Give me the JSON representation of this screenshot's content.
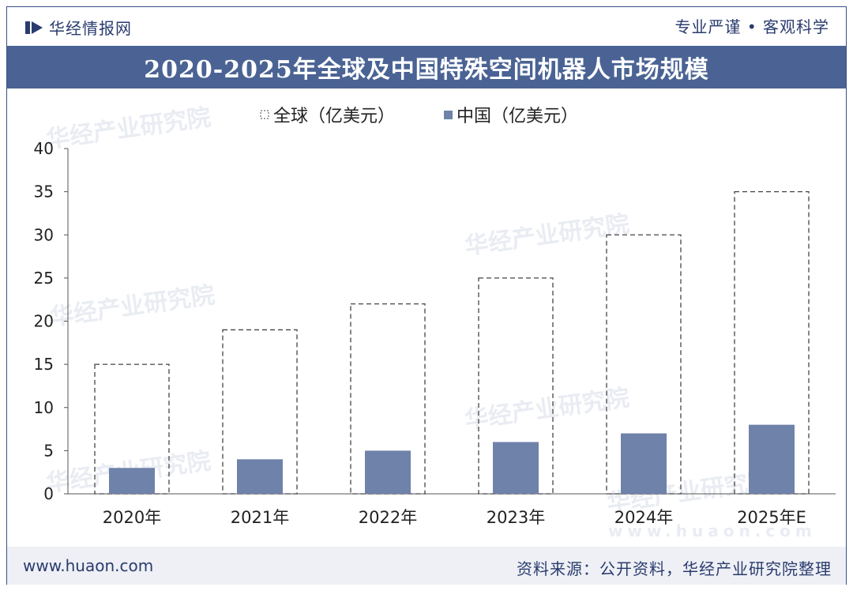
{
  "header": {
    "brand": "华经情报网",
    "slogan": "专业严谨 • 客观科学"
  },
  "footer": {
    "site": "www.huaon.com",
    "source": "资料来源：公开资料，华经产业研究院整理"
  },
  "watermarks": [
    "华经产业研究院",
    "华经产业研究院",
    "华经产业研究院",
    "华经产业研究院",
    "华经产业研究院",
    "华经产业研究院",
    "www.huaon.com"
  ],
  "chart_data": {
    "type": "bar",
    "title": "2020-2025年全球及中国特殊空间机器人市场规模",
    "categories": [
      "2020年",
      "2021年",
      "2022年",
      "2023年",
      "2024年",
      "2025年E"
    ],
    "series": [
      {
        "name": "全球（亿美元）",
        "values": [
          15,
          19,
          22,
          25,
          30,
          35
        ],
        "style": "dashed-outline",
        "color": "#444444"
      },
      {
        "name": "中国（亿美元）",
        "values": [
          3,
          4,
          5,
          6,
          7,
          8
        ],
        "style": "filled",
        "color": "#6f82aa"
      }
    ],
    "ylim": [
      0,
      40
    ],
    "yticks": [
      0,
      5,
      10,
      15,
      20,
      25,
      30,
      35,
      40
    ],
    "legend": "top-left",
    "grid": false
  }
}
